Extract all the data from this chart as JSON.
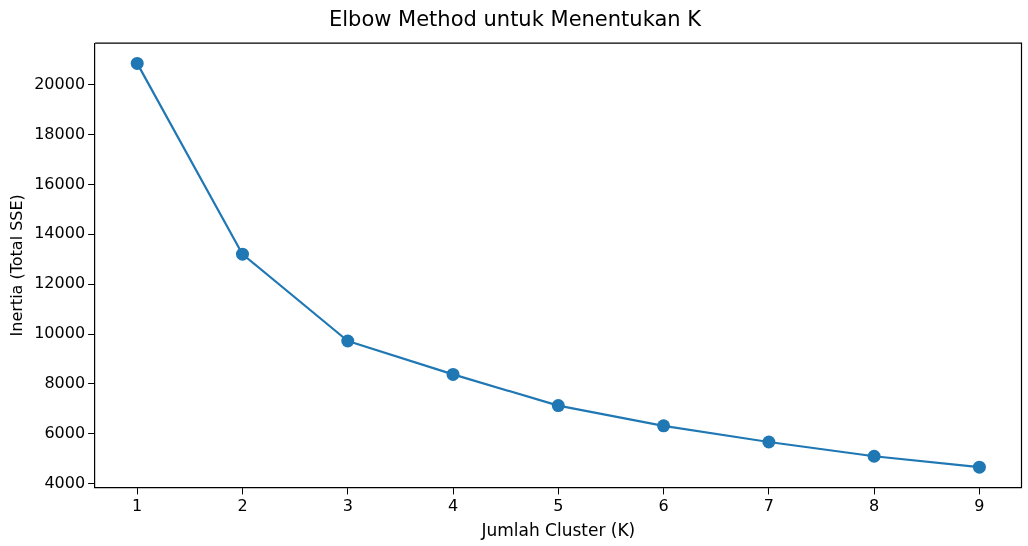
{
  "chart_data": {
    "type": "line",
    "title": "Elbow Method untuk Menentukan K",
    "xlabel": "Jumlah Cluster (K)",
    "ylabel": "Inertia (Total SSE)",
    "x": [
      1,
      2,
      3,
      4,
      5,
      6,
      7,
      8,
      9
    ],
    "series": [
      {
        "color": "#1f77b4",
        "values": [
          20850,
          13200,
          9720,
          8380,
          7130,
          6320,
          5670,
          5100,
          4660
        ]
      }
    ],
    "xlim": [
      0.6,
      9.4
    ],
    "xticks": [
      1,
      2,
      3,
      4,
      5,
      6,
      7,
      8,
      9
    ],
    "ylim": [
      3850,
      21660
    ],
    "yticks": [
      4000,
      6000,
      8000,
      10000,
      12000,
      14000,
      16000,
      18000,
      20000
    ],
    "grid": false,
    "legend": false,
    "marker": "circle",
    "line_style": "solid"
  }
}
